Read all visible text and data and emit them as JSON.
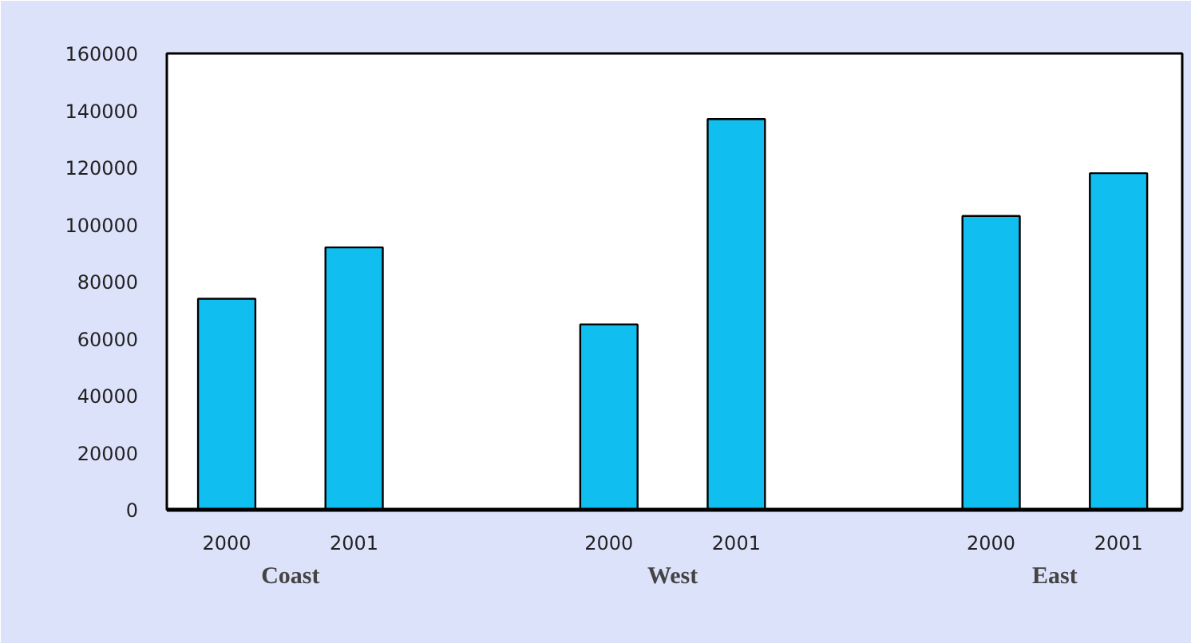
{
  "chart_data": {
    "type": "bar",
    "categories": [
      "2000",
      "2001",
      null,
      "2000",
      "2001",
      null,
      "2000",
      "2001"
    ],
    "values": [
      74000,
      92000,
      null,
      65000,
      137000,
      null,
      103000,
      118000
    ],
    "color": "#10bff0",
    "ylim": [
      0,
      160000
    ],
    "yticks": [
      0,
      20000,
      40000,
      60000,
      80000,
      100000,
      120000,
      140000,
      160000
    ],
    "annotations": [
      "Coast",
      "West",
      "East"
    ],
    "grid": false
  }
}
